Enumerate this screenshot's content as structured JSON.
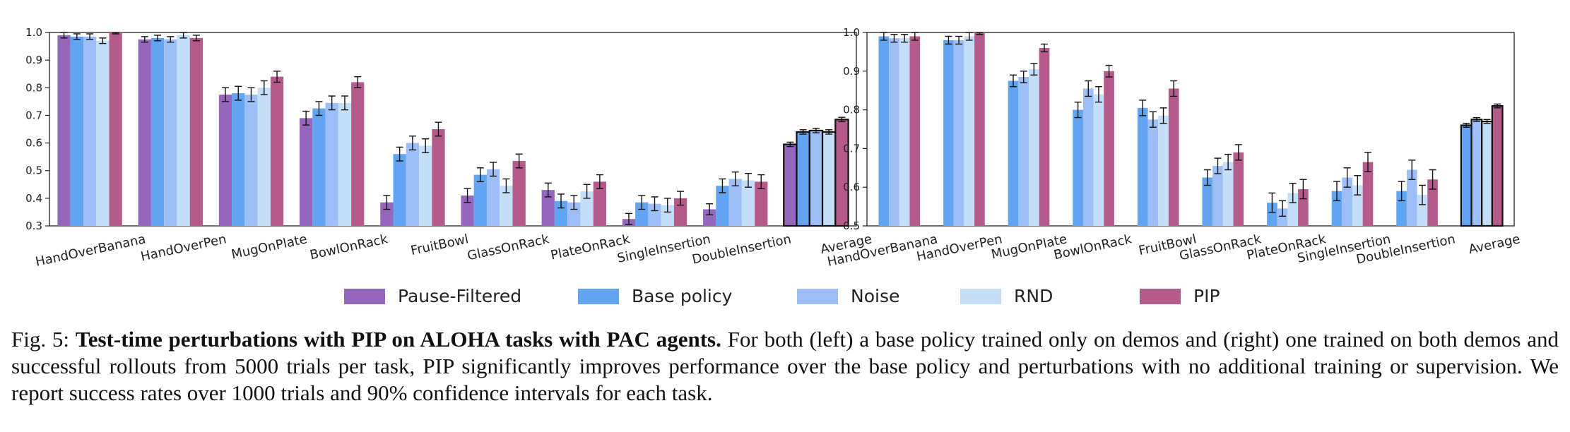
{
  "legend": [
    "Pause-Filtered",
    "Base policy",
    "Noise",
    "RND",
    "PIP"
  ],
  "colors": {
    "Pause-Filtered": "#9467bd",
    "Base policy": "#61a5f2",
    "Noise": "#9ebef8",
    "RND": "#c4def8",
    "PIP": "#b55b8c"
  },
  "caption": {
    "prefix": "Fig. 5: ",
    "bold": "Test-time perturbations with PIP on ALOHA tasks with PAC agents.",
    "text": " For both (left) a base policy trained only on demos and (right) one trained on both demos and successful rollouts from 5000 trials per task, PIP significantly improves performance over the base policy and perturbations with no additional training or supervision. We report success rates over 1000 trials and 90% confidence intervals for each task."
  },
  "chart_data": [
    {
      "type": "bar",
      "title": "",
      "xlabel": "",
      "ylabel": "",
      "ylim": [
        0.3,
        1.0
      ],
      "yticks": [
        "0.3",
        "0.4",
        "0.5",
        "0.6",
        "0.7",
        "0.8",
        "0.9",
        "1.0"
      ],
      "categories": [
        "HandOverBanana",
        "HandOverPen",
        "MugOnPlate",
        "BowlOnRack",
        "FruitBowl",
        "GlassOnRack",
        "PlateOnRack",
        "SingleInsertion",
        "DoubleInsertion",
        "Average"
      ],
      "highlight_category": "Average",
      "series": [
        {
          "name": "Pause-Filtered",
          "values": [
            0.99,
            0.975,
            0.775,
            0.69,
            0.385,
            0.41,
            0.43,
            0.325,
            0.36,
            0.595
          ],
          "errors": [
            0.01,
            0.01,
            0.025,
            0.025,
            0.025,
            0.025,
            0.025,
            0.02,
            0.02,
            0.008
          ]
        },
        {
          "name": "Base policy",
          "values": [
            0.985,
            0.98,
            0.78,
            0.725,
            0.56,
            0.485,
            0.39,
            0.385,
            0.445,
            0.64
          ],
          "errors": [
            0.01,
            0.01,
            0.025,
            0.025,
            0.025,
            0.025,
            0.025,
            0.025,
            0.025,
            0.008
          ]
        },
        {
          "name": "Noise",
          "values": [
            0.985,
            0.975,
            0.775,
            0.745,
            0.6,
            0.505,
            0.385,
            0.38,
            0.47,
            0.645
          ],
          "errors": [
            0.01,
            0.01,
            0.025,
            0.025,
            0.025,
            0.025,
            0.025,
            0.025,
            0.025,
            0.008
          ]
        },
        {
          "name": "RND",
          "values": [
            0.97,
            0.99,
            0.8,
            0.745,
            0.59,
            0.445,
            0.425,
            0.375,
            0.465,
            0.64
          ],
          "errors": [
            0.01,
            0.01,
            0.025,
            0.025,
            0.025,
            0.025,
            0.025,
            0.025,
            0.025,
            0.008
          ]
        },
        {
          "name": "PIP",
          "values": [
            1.0,
            0.98,
            0.84,
            0.82,
            0.65,
            0.535,
            0.46,
            0.4,
            0.46,
            0.685
          ],
          "errors": [
            0.005,
            0.01,
            0.02,
            0.02,
            0.025,
            0.025,
            0.025,
            0.025,
            0.025,
            0.008
          ]
        }
      ]
    },
    {
      "type": "bar",
      "title": "",
      "xlabel": "",
      "ylabel": "",
      "ylim": [
        0.5,
        1.0
      ],
      "yticks": [
        "0.5",
        "0.6",
        "0.7",
        "0.8",
        "0.9",
        "1.0"
      ],
      "categories": [
        "HandOverBanana",
        "HandOverPen",
        "MugOnPlate",
        "BowlOnRack",
        "FruitBowl",
        "GlassOnRack",
        "PlateOnRack",
        "SingleInsertion",
        "DoubleInsertion",
        "Average"
      ],
      "highlight_category": "Average",
      "series": [
        {
          "name": "Base policy",
          "values": [
            0.99,
            0.98,
            0.875,
            0.8,
            0.805,
            0.625,
            0.56,
            0.59,
            0.59,
            0.76
          ],
          "errors": [
            0.01,
            0.01,
            0.015,
            0.02,
            0.02,
            0.02,
            0.025,
            0.025,
            0.025,
            0.005
          ]
        },
        {
          "name": "Noise",
          "values": [
            0.985,
            0.98,
            0.885,
            0.855,
            0.775,
            0.655,
            0.545,
            0.625,
            0.645,
            0.775
          ],
          "errors": [
            0.01,
            0.01,
            0.015,
            0.02,
            0.02,
            0.02,
            0.02,
            0.025,
            0.025,
            0.005
          ]
        },
        {
          "name": "RND",
          "values": [
            0.985,
            0.99,
            0.905,
            0.84,
            0.785,
            0.665,
            0.585,
            0.605,
            0.58,
            0.77
          ],
          "errors": [
            0.01,
            0.01,
            0.015,
            0.02,
            0.02,
            0.02,
            0.025,
            0.025,
            0.025,
            0.005
          ]
        },
        {
          "name": "PIP",
          "values": [
            0.99,
            1.0,
            0.96,
            0.9,
            0.855,
            0.69,
            0.595,
            0.665,
            0.62,
            0.81
          ],
          "errors": [
            0.01,
            0.005,
            0.01,
            0.015,
            0.02,
            0.02,
            0.025,
            0.025,
            0.025,
            0.005
          ]
        }
      ]
    }
  ]
}
